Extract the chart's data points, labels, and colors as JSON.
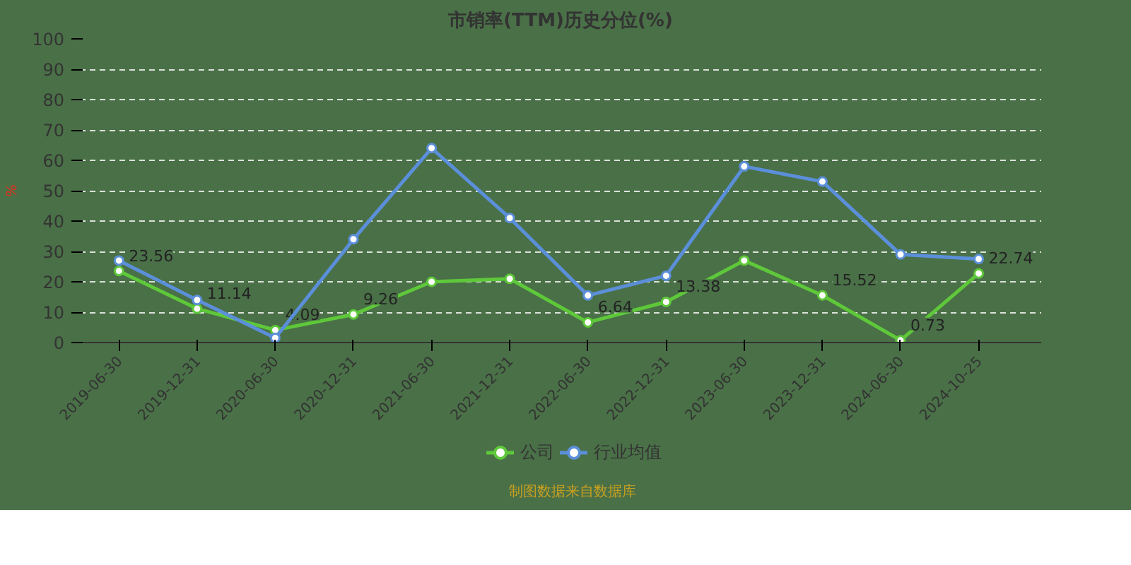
{
  "chart_data": {
    "type": "line",
    "title": "市销率(TTM)历史分位(%)",
    "ylabel": "%",
    "categories": [
      "2019-06-30",
      "2019-12-31",
      "2020-06-30",
      "2020-12-31",
      "2021-06-30",
      "2021-12-31",
      "2022-06-30",
      "2022-12-31",
      "2023-06-30",
      "2023-12-31",
      "2024-06-30",
      "2024-10-25"
    ],
    "series": [
      {
        "name": "公司",
        "color": "#5ec83a",
        "values": [
          23.56,
          11.14,
          4.09,
          9.26,
          20,
          21,
          6.64,
          13.38,
          27,
          15.52,
          0.73,
          22.74
        ],
        "value_labels": [
          "23.56",
          "11.14",
          "4.09",
          "9.26",
          null,
          null,
          "6.64",
          "13.38",
          null,
          "15.52",
          "0.73",
          "22.74"
        ]
      },
      {
        "name": "行业均值",
        "color": "#5b8fd9",
        "values": [
          27,
          14,
          1.5,
          34,
          64,
          41,
          15.5,
          22,
          58,
          53,
          29,
          27.5
        ]
      }
    ],
    "ylim": [
      0,
      100
    ],
    "yticks": [
      0,
      10,
      20,
      30,
      40,
      50,
      60,
      70,
      80,
      90,
      100
    ],
    "grid": "y",
    "legend": "bottom",
    "marker": "circle",
    "annotations": [
      "制图数据来自数据库"
    ]
  }
}
